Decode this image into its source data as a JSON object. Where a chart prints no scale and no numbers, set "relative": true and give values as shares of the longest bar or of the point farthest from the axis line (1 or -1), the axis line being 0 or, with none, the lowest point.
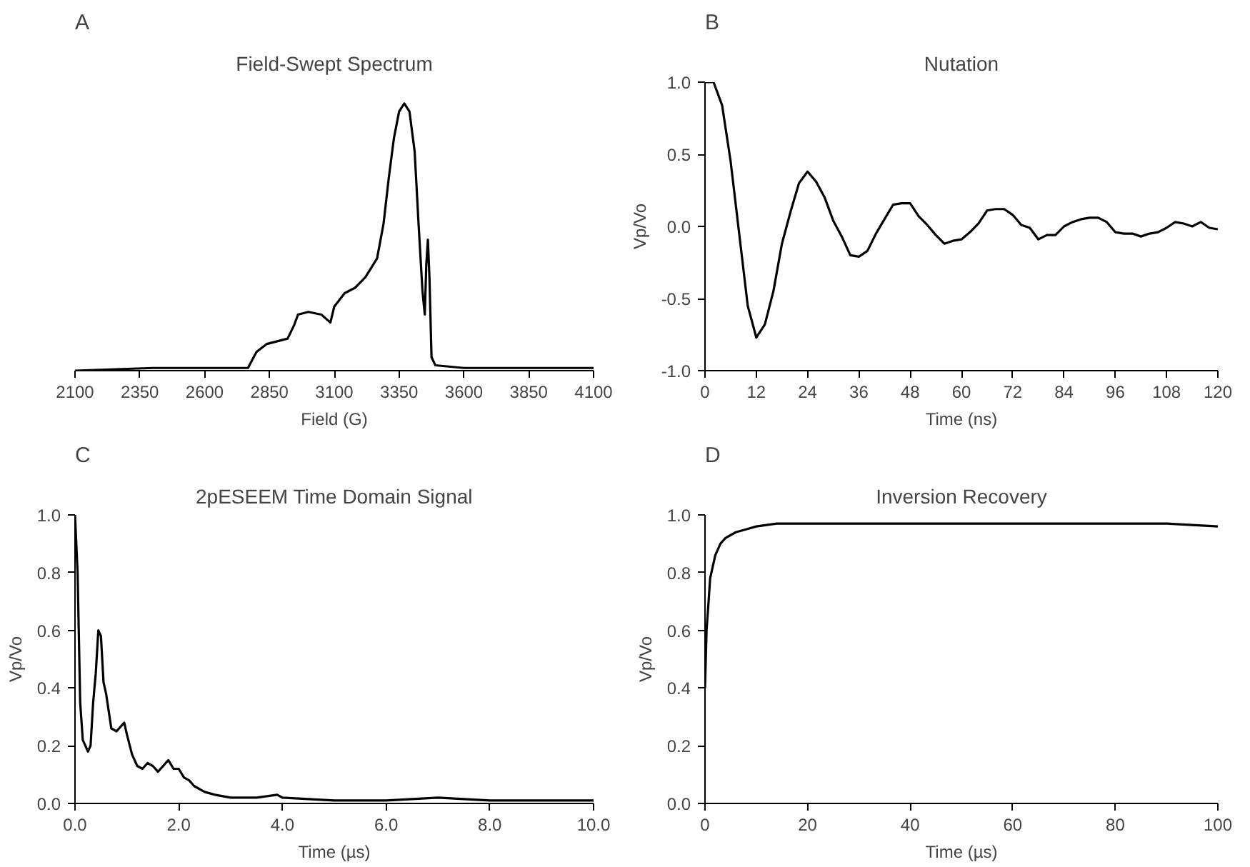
{
  "chart_data": [
    {
      "type": "line",
      "title": "Field-Swept Spectrum",
      "xlabel": "Field (G)",
      "annotations": [
        "A"
      ],
      "relative": true,
      "xlim": [
        2100,
        4100
      ],
      "xticks": [
        2100,
        2350,
        2600,
        2850,
        3100,
        3350,
        3600,
        3850,
        4100
      ],
      "x": [
        2100,
        2400,
        2700,
        2767,
        2800,
        2840,
        2880,
        2920,
        2945,
        2960,
        3000,
        3050,
        3085,
        3100,
        3140,
        3180,
        3220,
        3265,
        3290,
        3310,
        3330,
        3350,
        3370,
        3390,
        3410,
        3425,
        3440,
        3449,
        3455,
        3461,
        3467,
        3475,
        3490,
        3600,
        4100
      ],
      "series": [
        {
          "color": "#000000",
          "values": [
            0.0,
            0.01,
            0.01,
            0.01,
            0.07,
            0.1,
            0.11,
            0.12,
            0.17,
            0.21,
            0.22,
            0.21,
            0.18,
            0.24,
            0.29,
            0.31,
            0.35,
            0.42,
            0.55,
            0.72,
            0.87,
            0.97,
            1.0,
            0.97,
            0.82,
            0.55,
            0.3,
            0.21,
            0.4,
            0.49,
            0.35,
            0.05,
            0.02,
            0.01,
            0.01
          ]
        }
      ]
    },
    {
      "type": "line",
      "title": "Nutation",
      "xlabel": "Time (ns)",
      "ylabel": "Vp/Vo",
      "annotations": [
        "B"
      ],
      "xlim": [
        0,
        120
      ],
      "xticks": [
        0,
        12,
        24,
        36,
        48,
        60,
        72,
        84,
        96,
        108,
        120
      ],
      "ylim": [
        -1,
        1
      ],
      "yticks": [
        {
          "value": -1,
          "label": "-1.0"
        },
        {
          "value": -0.5,
          "label": "-0.5"
        },
        {
          "value": 0,
          "label": "0.0"
        },
        {
          "value": 0.5,
          "label": "0.5"
        },
        {
          "value": 1,
          "label": "1.0"
        }
      ],
      "x": [
        0,
        2,
        4,
        6,
        8,
        10,
        12,
        14,
        16,
        18,
        20,
        22,
        24,
        26,
        28,
        30,
        32,
        34,
        36,
        38,
        40,
        42,
        44,
        46,
        48,
        50,
        52,
        54,
        56,
        58,
        60,
        62,
        64,
        66,
        68,
        70,
        72,
        74,
        76,
        78,
        80,
        82,
        84,
        86,
        88,
        90,
        92,
        94,
        96,
        98,
        100,
        102,
        104,
        106,
        108,
        110,
        112,
        114,
        116,
        118,
        120
      ],
      "series": [
        {
          "color": "#000000",
          "values": [
            1.0,
            1.0,
            0.84,
            0.45,
            -0.05,
            -0.55,
            -0.77,
            -0.68,
            -0.45,
            -0.12,
            0.1,
            0.3,
            0.38,
            0.31,
            0.2,
            0.04,
            -0.07,
            -0.2,
            -0.21,
            -0.17,
            -0.05,
            0.05,
            0.15,
            0.16,
            0.16,
            0.07,
            0.01,
            -0.06,
            -0.12,
            -0.1,
            -0.09,
            -0.04,
            0.02,
            0.11,
            0.12,
            0.12,
            0.08,
            0.01,
            -0.01,
            -0.09,
            -0.06,
            -0.06,
            0.0,
            0.03,
            0.05,
            0.06,
            0.06,
            0.03,
            -0.04,
            -0.05,
            -0.05,
            -0.07,
            -0.05,
            -0.04,
            -0.01,
            0.03,
            0.02,
            0.0,
            0.03,
            -0.01,
            -0.02
          ]
        }
      ]
    },
    {
      "type": "line",
      "title": "2pESEEM Time Domain Signal",
      "xlabel": "Time (µs)",
      "ylabel": "Vp/Vo",
      "annotations": [
        "C"
      ],
      "xlim": [
        0,
        10
      ],
      "xticks": [
        {
          "value": 0,
          "label": "0.0"
        },
        {
          "value": 2,
          "label": "2.0"
        },
        {
          "value": 4,
          "label": "4.0"
        },
        {
          "value": 6,
          "label": "6.0"
        },
        {
          "value": 8,
          "label": "8.0"
        },
        {
          "value": 10,
          "label": "10.0"
        }
      ],
      "ylim": [
        0,
        1
      ],
      "yticks": [
        {
          "value": 0,
          "label": "0.0"
        },
        {
          "value": 0.2,
          "label": "0.2"
        },
        {
          "value": 0.4,
          "label": "0.4"
        },
        {
          "value": 0.6,
          "label": "0.6"
        },
        {
          "value": 0.8,
          "label": "0.8"
        },
        {
          "value": 1,
          "label": "1.0"
        }
      ],
      "x": [
        0,
        0.05,
        0.1,
        0.15,
        0.25,
        0.3,
        0.35,
        0.4,
        0.45,
        0.5,
        0.55,
        0.6,
        0.7,
        0.8,
        0.9,
        0.95,
        1.0,
        1.1,
        1.2,
        1.3,
        1.4,
        1.5,
        1.6,
        1.7,
        1.8,
        1.9,
        2.0,
        2.1,
        2.2,
        2.3,
        2.5,
        2.7,
        3.0,
        3.5,
        3.9,
        4.0,
        5.0,
        6.0,
        7.0,
        8.0,
        9.0,
        10.0
      ],
      "series": [
        {
          "color": "#000000",
          "values": [
            1.0,
            0.8,
            0.35,
            0.22,
            0.18,
            0.2,
            0.35,
            0.45,
            0.6,
            0.58,
            0.42,
            0.38,
            0.26,
            0.25,
            0.27,
            0.28,
            0.24,
            0.17,
            0.13,
            0.12,
            0.14,
            0.13,
            0.11,
            0.13,
            0.15,
            0.12,
            0.12,
            0.09,
            0.08,
            0.06,
            0.04,
            0.03,
            0.02,
            0.02,
            0.03,
            0.02,
            0.01,
            0.01,
            0.02,
            0.01,
            0.01,
            0.01
          ]
        }
      ]
    },
    {
      "type": "line",
      "title": "Inversion Recovery",
      "xlabel": "Time (µs)",
      "ylabel": "Vp/Vo",
      "annotations": [
        "D"
      ],
      "xlim": [
        0,
        100
      ],
      "xticks": [
        0,
        20,
        40,
        60,
        80,
        100
      ],
      "ylim": [
        0,
        1
      ],
      "yticks": [
        {
          "value": 0,
          "label": "0.0"
        },
        {
          "value": 0.2,
          "label": "0.2"
        },
        {
          "value": 0.4,
          "label": "0.4"
        },
        {
          "value": 0.6,
          "label": "0.6"
        },
        {
          "value": 0.8,
          "label": "0.8"
        },
        {
          "value": 1,
          "label": "1.0"
        }
      ],
      "x": [
        0,
        0.3,
        0.7,
        1,
        2,
        3,
        4,
        6,
        8,
        10,
        14,
        20,
        30,
        40,
        50,
        60,
        70,
        80,
        90,
        100
      ],
      "series": [
        {
          "color": "#000000",
          "values": [
            0.4,
            0.6,
            0.7,
            0.78,
            0.86,
            0.9,
            0.92,
            0.94,
            0.95,
            0.96,
            0.97,
            0.97,
            0.97,
            0.97,
            0.97,
            0.97,
            0.97,
            0.97,
            0.97,
            0.96
          ]
        }
      ]
    }
  ]
}
